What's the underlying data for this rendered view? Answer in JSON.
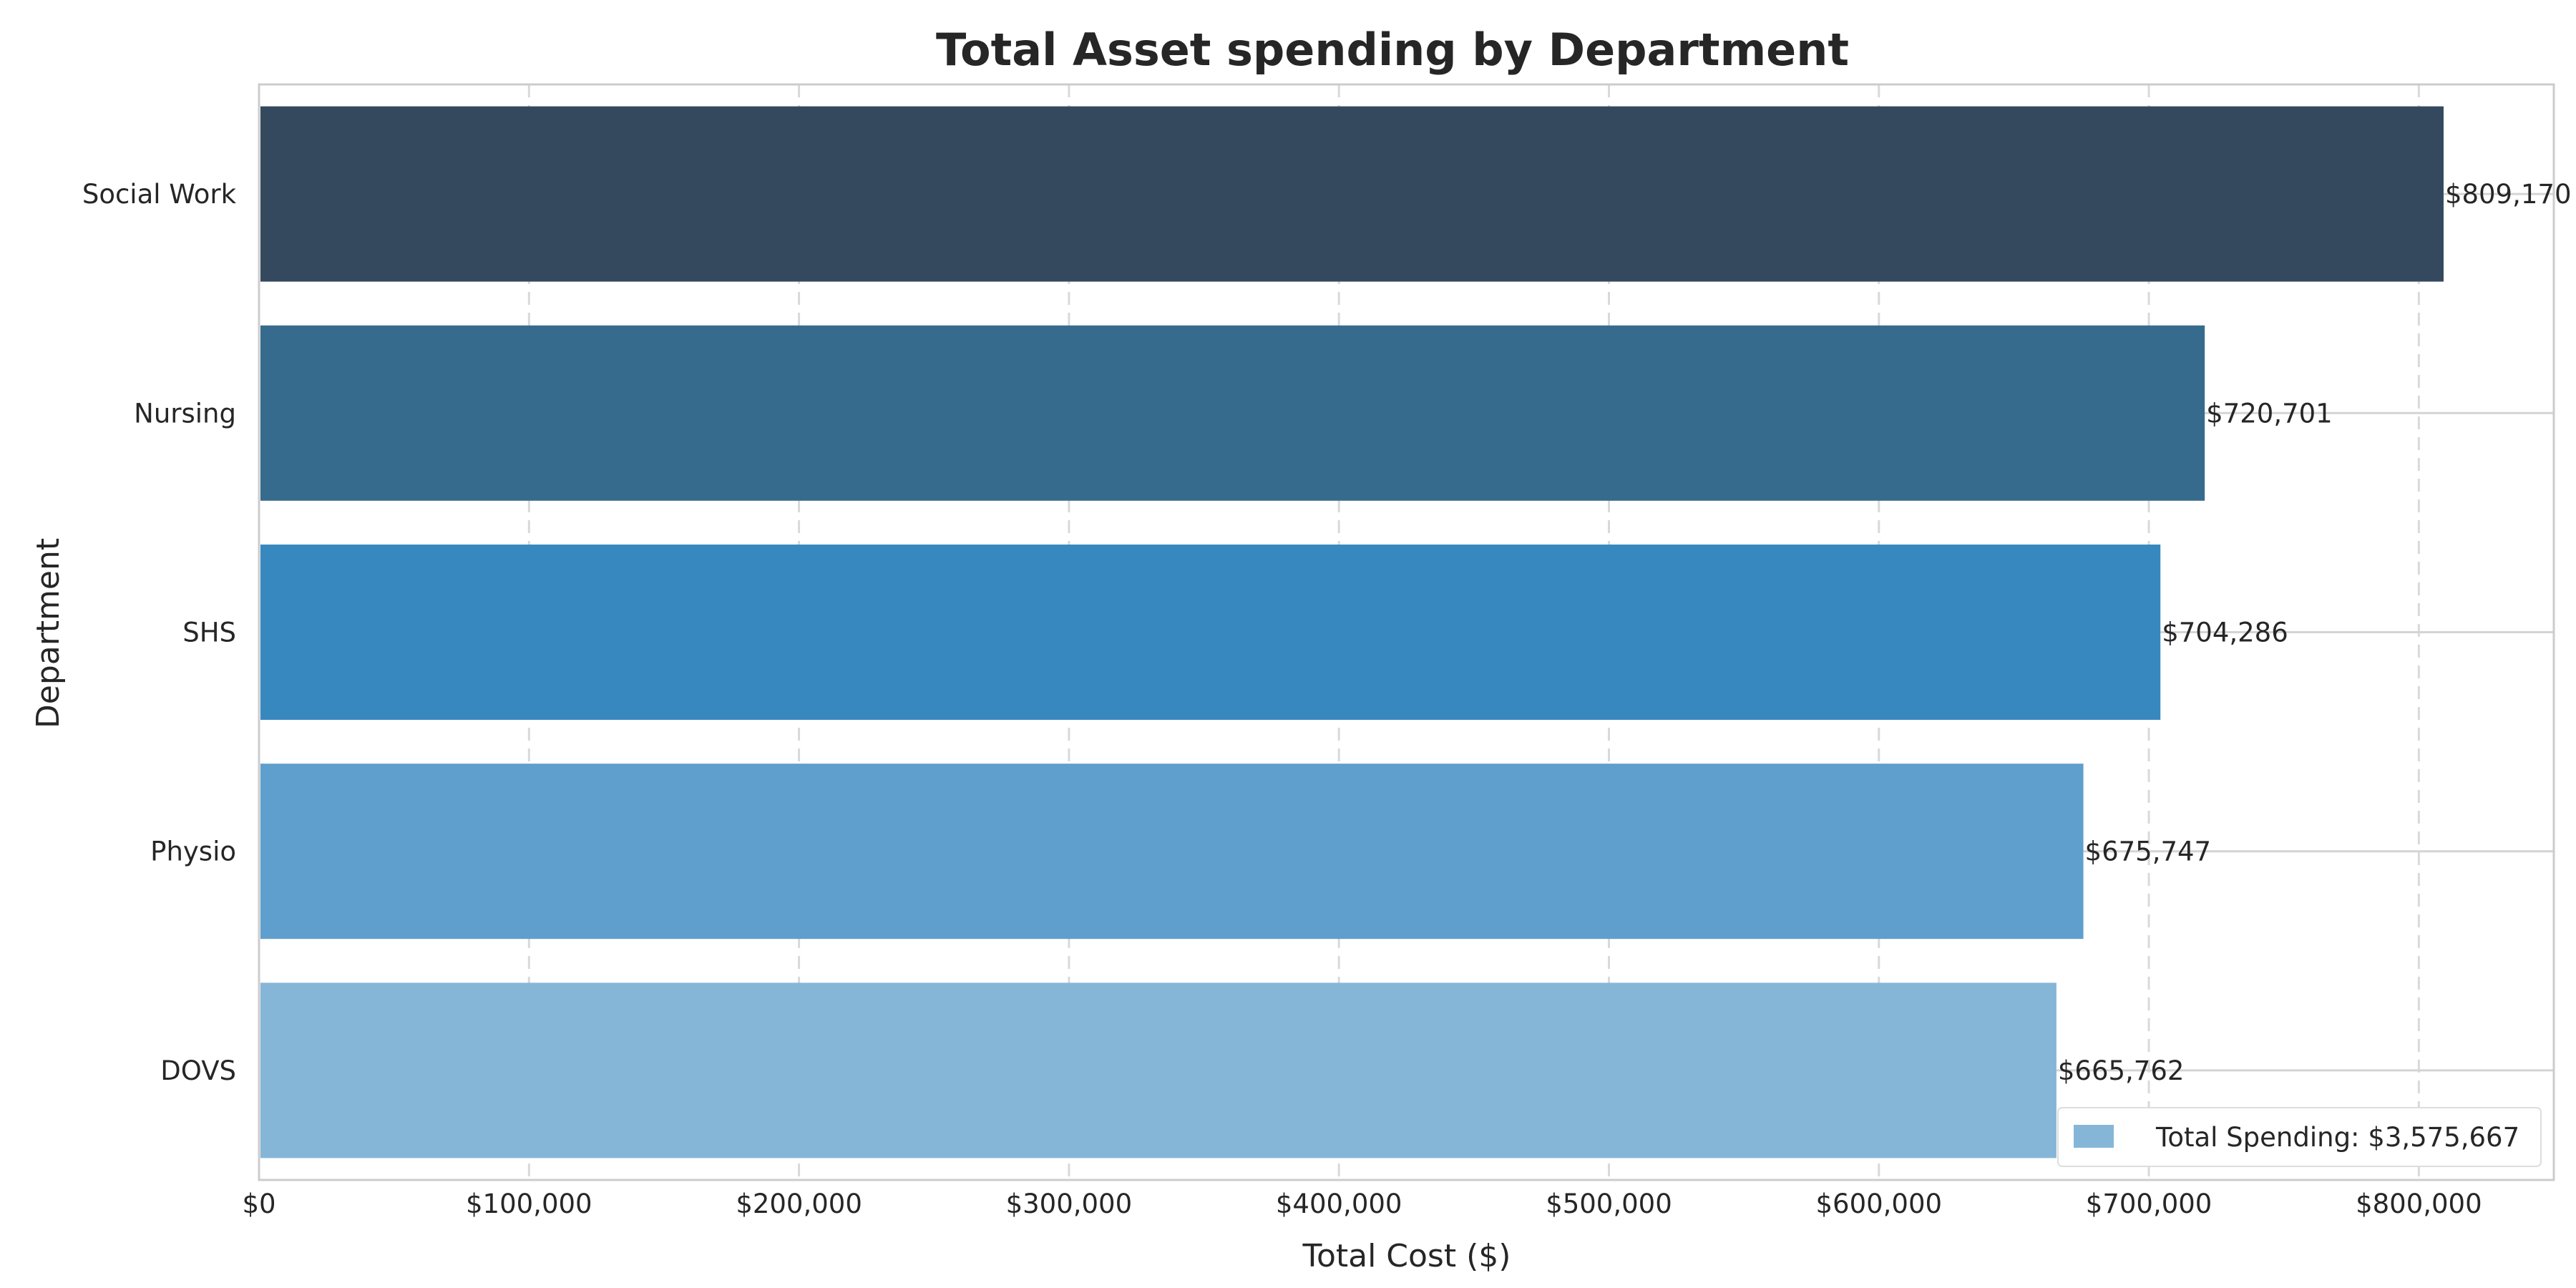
{
  "chart_data": {
    "type": "bar",
    "orientation": "horizontal",
    "title": "Total Asset spending by Department",
    "xlabel": "Total Cost ($)",
    "ylabel": "Department",
    "categories": [
      "Social Work",
      "Nursing",
      "SHS",
      "Physio",
      "DOVS"
    ],
    "values": [
      809170,
      720701,
      704286,
      675747,
      665762
    ],
    "data_labels": [
      "$809,170",
      "$720,701",
      "$704,286",
      "$675,747",
      "$665,762"
    ],
    "colors": [
      "#34495e",
      "#366b8e",
      "#3888c0",
      "#5f9fcd",
      "#85b6d8"
    ],
    "xlim": [
      0,
      850000
    ],
    "xticks": [
      0,
      100000,
      200000,
      300000,
      400000,
      500000,
      600000,
      700000,
      800000
    ],
    "xtick_labels": [
      "$0",
      "$100,000",
      "$200,000",
      "$300,000",
      "$400,000",
      "$500,000",
      "$600,000",
      "$700,000",
      "$800,000"
    ],
    "grid": "x-dashed",
    "legend": {
      "placement": "lower-right",
      "label": "Total Spending: $3,575,667",
      "color": "#85b6d8"
    }
  }
}
